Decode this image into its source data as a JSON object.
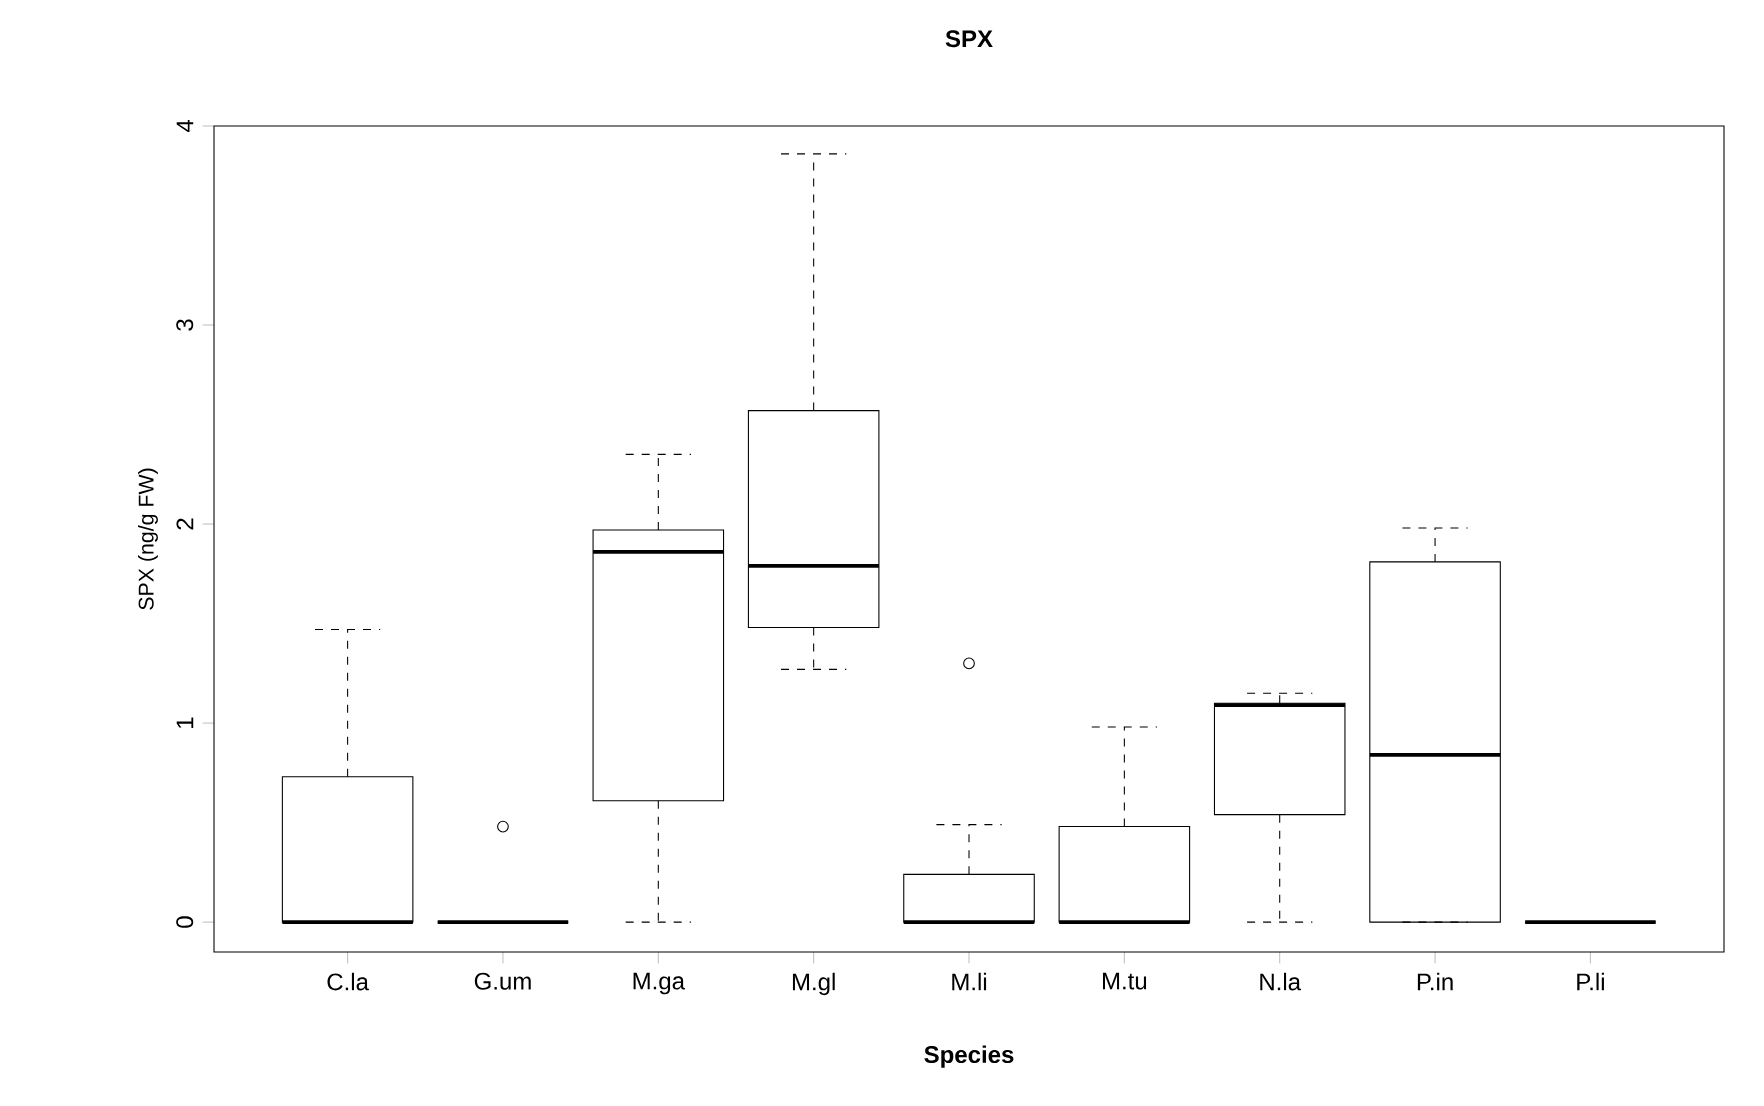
{
  "chart_data": {
    "type": "box",
    "title": "SPX",
    "xlabel": "Species",
    "ylabel": "SPX (ng/g FW)",
    "categories": [
      "C.la",
      "G.um",
      "M.ga",
      "M.gl",
      "M.li",
      "M.tu",
      "N.la",
      "P.in",
      "P.li"
    ],
    "boxes": [
      {
        "low": 0,
        "q1": 0,
        "median": 0,
        "q3": 0.73,
        "high": 1.47
      },
      {
        "low": 0,
        "q1": 0,
        "median": 0,
        "q3": 0,
        "high": 0,
        "outliers": [
          0.48
        ]
      },
      {
        "low": 0,
        "q1": 0.61,
        "median": 1.86,
        "q3": 1.97,
        "high": 2.35
      },
      {
        "low": 1.27,
        "q1": 1.48,
        "median": 1.79,
        "q3": 2.57,
        "high": 3.86
      },
      {
        "low": 0,
        "q1": 0,
        "median": 0,
        "q3": 0.24,
        "high": 0.49,
        "outliers": [
          1.3
        ]
      },
      {
        "low": 0,
        "q1": 0,
        "median": 0,
        "q3": 0.48,
        "high": 0.98
      },
      {
        "low": 0,
        "q1": 0.54,
        "median": 1.09,
        "q3": 1.1,
        "high": 1.15
      },
      {
        "low": 0,
        "q1": 0,
        "median": 0.84,
        "q3": 1.81,
        "high": 1.98
      },
      {
        "low": 0,
        "q1": 0,
        "median": 0,
        "q3": 0,
        "high": 0
      }
    ],
    "ylim": [
      -0.15,
      4.0
    ],
    "yticks": [
      0,
      1,
      2,
      3,
      4
    ],
    "marker": "circle",
    "line_style": "dashed"
  }
}
